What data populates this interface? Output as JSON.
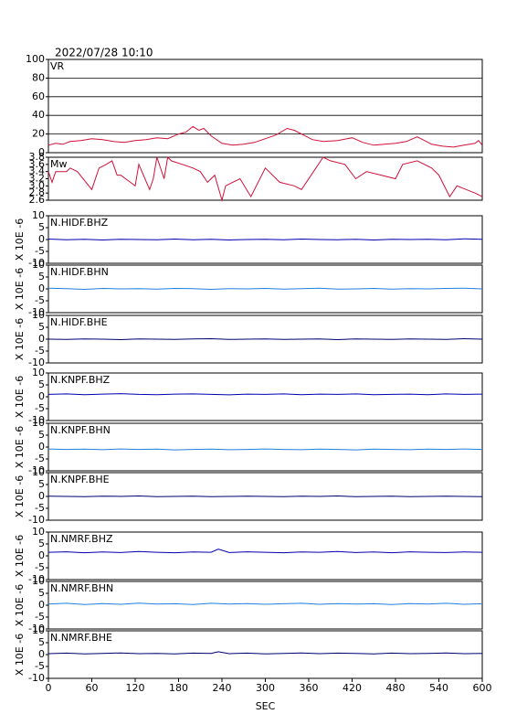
{
  "title": "2022/07/28 10:10",
  "chart_data": [
    {
      "type": "line",
      "title": "VR",
      "color": "#d0103a",
      "grid": true,
      "xlim": [
        0,
        600
      ],
      "ylim": [
        0,
        100
      ],
      "yticks": [
        0,
        20,
        40,
        60,
        80,
        100
      ],
      "x": [
        0,
        10,
        20,
        30,
        45,
        60,
        75,
        90,
        105,
        120,
        135,
        150,
        165,
        180,
        190,
        200,
        208,
        215,
        225,
        240,
        255,
        270,
        285,
        300,
        315,
        330,
        340,
        350,
        365,
        380,
        400,
        420,
        435,
        450,
        465,
        480,
        495,
        510,
        520,
        530,
        545,
        560,
        575,
        590,
        595,
        600
      ],
      "values": [
        8,
        10,
        9,
        12,
        13,
        15,
        14,
        12,
        11,
        13,
        14,
        16,
        15,
        20,
        22,
        28,
        24,
        26,
        18,
        10,
        8,
        9,
        11,
        15,
        19,
        26,
        24,
        20,
        14,
        12,
        13,
        16,
        11,
        8,
        9,
        10,
        12,
        17,
        13,
        9,
        7,
        6,
        8,
        10,
        13,
        8
      ]
    },
    {
      "type": "line",
      "title": "Mw",
      "color": "#d0103a",
      "grid": false,
      "xlim": [
        0,
        600
      ],
      "ylim": [
        2.6,
        3.8
      ],
      "yticks": [
        2.6,
        2.8,
        {
          "value": 3,
          "label": "3.0"
        },
        3.2,
        3.4,
        3.6,
        3.8
      ],
      "x": [
        0,
        5,
        10,
        25,
        30,
        40,
        60,
        70,
        80,
        88,
        95,
        100,
        120,
        125,
        140,
        145,
        150,
        160,
        165,
        170,
        185,
        200,
        210,
        220,
        230,
        240,
        245,
        265,
        280,
        300,
        320,
        340,
        350,
        380,
        390,
        410,
        425,
        440,
        480,
        490,
        510,
        530,
        540,
        555,
        565,
        590,
        600
      ],
      "values": [
        3.4,
        3.1,
        3.4,
        3.4,
        3.5,
        3.4,
        2.9,
        3.5,
        3.6,
        3.7,
        3.3,
        3.3,
        3.0,
        3.6,
        2.9,
        3.2,
        3.8,
        3.2,
        3.8,
        3.7,
        3.6,
        3.5,
        3.4,
        3.1,
        3.3,
        2.6,
        3.0,
        3.2,
        2.7,
        3.5,
        3.1,
        3.0,
        2.9,
        3.8,
        3.7,
        3.6,
        3.2,
        3.4,
        3.2,
        3.6,
        3.7,
        3.5,
        3.3,
        2.7,
        3.0,
        2.8,
        2.7
      ]
    },
    {
      "type": "line",
      "title": "N.HIDF.BHZ",
      "ylabel": "X 10E -6",
      "color": "#0000b0",
      "grid": false,
      "xlim": [
        0,
        600
      ],
      "ylim": [
        -10,
        10
      ],
      "yticks": [
        -10,
        -5,
        0,
        5,
        10
      ],
      "x": [
        0,
        25,
        50,
        75,
        100,
        125,
        150,
        175,
        200,
        225,
        250,
        275,
        300,
        325,
        350,
        375,
        400,
        425,
        450,
        475,
        500,
        525,
        550,
        575,
        600
      ],
      "values": [
        0.2,
        -0.1,
        0.1,
        -0.2,
        0.1,
        0,
        -0.1,
        0.2,
        -0.1,
        0.1,
        -0.2,
        0,
        0.1,
        -0.1,
        0.2,
        0,
        -0.1,
        0.1,
        -0.2,
        0.1,
        0,
        0.1,
        -0.1,
        0.3,
        0.1
      ]
    },
    {
      "type": "line",
      "title": "N.HIDF.BHN",
      "ylabel": "X 10E -6",
      "color": "#2080e0",
      "grid": false,
      "xlim": [
        0,
        600
      ],
      "ylim": [
        -10,
        10
      ],
      "yticks": [
        -10,
        -5,
        0,
        5,
        10
      ],
      "x": [
        0,
        25,
        50,
        75,
        100,
        125,
        150,
        175,
        200,
        225,
        250,
        275,
        300,
        325,
        350,
        375,
        400,
        425,
        450,
        475,
        500,
        525,
        550,
        575,
        600
      ],
      "values": [
        0.3,
        0.1,
        -0.2,
        0.2,
        0,
        0.1,
        -0.1,
        0.2,
        0.1,
        -0.2,
        0.1,
        0,
        0.2,
        -0.1,
        0.1,
        0.3,
        -0.1,
        0,
        0.2,
        -0.1,
        0.1,
        0,
        0.2,
        0.3,
        0
      ]
    },
    {
      "type": "line",
      "title": "N.HIDF.BHE",
      "ylabel": "X 10E -6",
      "color": "#000070",
      "grid": false,
      "xlim": [
        0,
        600
      ],
      "ylim": [
        -10,
        10
      ],
      "yticks": [
        -10,
        -5,
        0,
        5,
        10
      ],
      "x": [
        0,
        25,
        50,
        75,
        100,
        125,
        150,
        175,
        200,
        225,
        250,
        275,
        300,
        325,
        350,
        375,
        400,
        425,
        450,
        475,
        500,
        525,
        550,
        575,
        600
      ],
      "values": [
        0,
        -0.1,
        0.1,
        0,
        -0.2,
        0.1,
        0,
        -0.1,
        0.1,
        0.2,
        -0.1,
        0,
        0.1,
        -0.1,
        0,
        0.1,
        -0.2,
        0.1,
        0,
        -0.1,
        0.1,
        0,
        -0.1,
        0.2,
        0
      ]
    },
    {
      "type": "line",
      "title": "N.KNPF.BHZ",
      "ylabel": "X 10E -6",
      "color": "#0000b0",
      "grid": false,
      "xlim": [
        0,
        600
      ],
      "ylim": [
        -10,
        10
      ],
      "yticks": [
        -10,
        -5,
        0,
        5,
        10
      ],
      "x": [
        0,
        25,
        50,
        75,
        100,
        125,
        150,
        175,
        200,
        225,
        250,
        275,
        300,
        325,
        350,
        375,
        400,
        425,
        450,
        475,
        500,
        525,
        550,
        575,
        600
      ],
      "values": [
        1,
        1.2,
        0.9,
        1.1,
        1.3,
        1,
        0.9,
        1.1,
        1.2,
        1,
        0.8,
        1.1,
        1,
        1.2,
        0.9,
        1.1,
        1,
        1.2,
        0.9,
        1,
        1.1,
        0.9,
        1.2,
        1,
        1.1
      ]
    },
    {
      "type": "line",
      "title": "N.KNPF.BHN",
      "ylabel": "X 10E -6",
      "color": "#2080e0",
      "grid": false,
      "xlim": [
        0,
        600
      ],
      "ylim": [
        -10,
        10
      ],
      "yticks": [
        -10,
        -5,
        0,
        5,
        10
      ],
      "x": [
        0,
        25,
        50,
        75,
        100,
        125,
        150,
        175,
        200,
        225,
        250,
        275,
        300,
        325,
        350,
        375,
        400,
        425,
        450,
        475,
        500,
        525,
        550,
        575,
        600
      ],
      "values": [
        -0.8,
        -1,
        -0.9,
        -1.1,
        -0.8,
        -1,
        -0.9,
        -1.2,
        -1,
        -0.9,
        -1.1,
        -1,
        -0.8,
        -1,
        -1.1,
        -0.9,
        -1,
        -1.2,
        -0.9,
        -1,
        -1.1,
        -0.9,
        -1,
        -0.8,
        -1
      ]
    },
    {
      "type": "line",
      "title": "N.KNPF.BHE",
      "ylabel": "X 10E -6",
      "color": "#000070",
      "grid": false,
      "xlim": [
        0,
        600
      ],
      "ylim": [
        -10,
        10
      ],
      "yticks": [
        -10,
        -5,
        0,
        5,
        10
      ],
      "x": [
        0,
        25,
        50,
        75,
        100,
        125,
        150,
        175,
        200,
        225,
        250,
        275,
        300,
        325,
        350,
        375,
        400,
        425,
        450,
        475,
        500,
        525,
        550,
        575,
        600
      ],
      "values": [
        0.1,
        0,
        -0.1,
        0.1,
        0,
        0.2,
        -0.1,
        0,
        0.1,
        -0.1,
        0,
        0.1,
        0,
        -0.1,
        0.1,
        0,
        0.2,
        -0.1,
        0,
        0.1,
        -0.1,
        0,
        0.1,
        0,
        -0.1
      ]
    },
    {
      "type": "line",
      "title": "N.NMRF.BHZ",
      "ylabel": "X 10E -6",
      "color": "#0000b0",
      "grid": false,
      "xlim": [
        0,
        600
      ],
      "ylim": [
        -10,
        10
      ],
      "yticks": [
        -10,
        -5,
        0,
        5,
        10
      ],
      "x": [
        0,
        25,
        50,
        75,
        100,
        125,
        150,
        175,
        200,
        225,
        235,
        250,
        275,
        300,
        325,
        350,
        375,
        400,
        425,
        450,
        475,
        500,
        525,
        550,
        575,
        600
      ],
      "values": [
        1.5,
        1.7,
        1.3,
        1.6,
        1.4,
        1.8,
        1.5,
        1.3,
        1.6,
        1.5,
        2.8,
        1.4,
        1.7,
        1.5,
        1.3,
        1.6,
        1.5,
        1.8,
        1.4,
        1.6,
        1.3,
        1.7,
        1.5,
        1.4,
        1.6,
        1.5
      ]
    },
    {
      "type": "line",
      "title": "N.NMRF.BHN",
      "ylabel": "X 10E -6",
      "color": "#2080e0",
      "grid": false,
      "xlim": [
        0,
        600
      ],
      "ylim": [
        -10,
        10
      ],
      "yticks": [
        -10,
        -5,
        0,
        5,
        10
      ],
      "x": [
        0,
        25,
        50,
        75,
        100,
        125,
        150,
        175,
        200,
        225,
        250,
        275,
        300,
        325,
        350,
        375,
        400,
        425,
        450,
        475,
        500,
        525,
        550,
        575,
        600
      ],
      "values": [
        0.5,
        0.8,
        0.3,
        0.7,
        0.4,
        0.9,
        0.5,
        0.6,
        0.3,
        0.8,
        0.5,
        0.7,
        0.4,
        0.6,
        0.8,
        0.4,
        0.7,
        0.5,
        0.6,
        0.3,
        0.7,
        0.5,
        0.8,
        0.4,
        0.6
      ]
    },
    {
      "type": "line",
      "title": "N.NMRF.BHE",
      "ylabel": "X 10E -6",
      "color": "#000070",
      "grid": false,
      "xlim": [
        0,
        600
      ],
      "ylim": [
        -10,
        10
      ],
      "yticks": [
        -10,
        -5,
        0,
        5,
        10
      ],
      "x": [
        0,
        25,
        50,
        75,
        100,
        125,
        150,
        175,
        200,
        225,
        235,
        250,
        275,
        300,
        325,
        350,
        375,
        400,
        425,
        450,
        475,
        500,
        525,
        550,
        575,
        600
      ],
      "values": [
        0.4,
        0.6,
        0.3,
        0.5,
        0.7,
        0.4,
        0.5,
        0.3,
        0.6,
        0.5,
        1.2,
        0.4,
        0.6,
        0.3,
        0.5,
        0.7,
        0.4,
        0.6,
        0.5,
        0.3,
        0.6,
        0.4,
        0.5,
        0.7,
        0.4,
        0.5
      ],
      "xticks": [
        0,
        60,
        120,
        180,
        240,
        300,
        360,
        420,
        480,
        540,
        600
      ],
      "xlabel": "SEC"
    }
  ]
}
